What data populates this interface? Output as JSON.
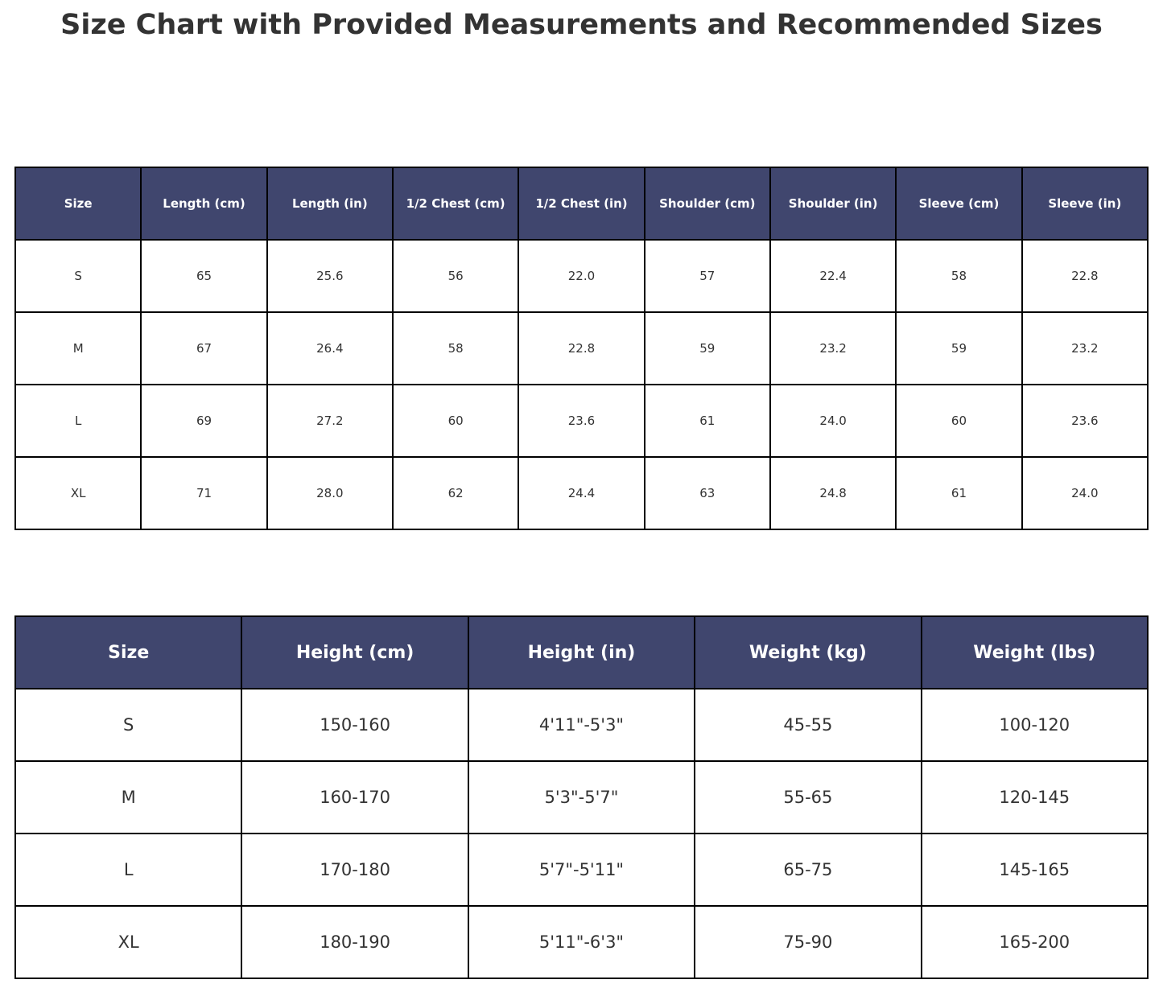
{
  "title": "Size Chart with Provided Measurements and Recommended Sizes",
  "colors": {
    "header_bg": "#40466e",
    "header_text": "#ffffff",
    "border": "#000000",
    "cell_text": "#333333",
    "page_bg": "#ffffff"
  },
  "chart_data": [
    {
      "type": "table",
      "name": "garment-measurements",
      "columns": [
        "Size",
        "Length (cm)",
        "Length (in)",
        "1/2 Chest (cm)",
        "1/2 Chest (in)",
        "Shoulder (cm)",
        "Shoulder (in)",
        "Sleeve (cm)",
        "Sleeve (in)"
      ],
      "rows": [
        [
          "S",
          "65",
          "25.6",
          "56",
          "22.0",
          "57",
          "22.4",
          "58",
          "22.8"
        ],
        [
          "M",
          "67",
          "26.4",
          "58",
          "22.8",
          "59",
          "23.2",
          "59",
          "23.2"
        ],
        [
          "L",
          "69",
          "27.2",
          "60",
          "23.6",
          "61",
          "24.0",
          "60",
          "23.6"
        ],
        [
          "XL",
          "71",
          "28.0",
          "62",
          "24.4",
          "63",
          "24.8",
          "61",
          "24.0"
        ]
      ]
    },
    {
      "type": "table",
      "name": "recommended-sizes",
      "columns": [
        "Size",
        "Height (cm)",
        "Height (in)",
        "Weight (kg)",
        "Weight (lbs)"
      ],
      "rows": [
        [
          "S",
          "150-160",
          "4'11\"-5'3\"",
          "45-55",
          "100-120"
        ],
        [
          "M",
          "160-170",
          "5'3\"-5'7\"",
          "55-65",
          "120-145"
        ],
        [
          "L",
          "170-180",
          "5'7\"-5'11\"",
          "65-75",
          "145-165"
        ],
        [
          "XL",
          "180-190",
          "5'11\"-6'3\"",
          "75-90",
          "165-200"
        ]
      ]
    }
  ]
}
